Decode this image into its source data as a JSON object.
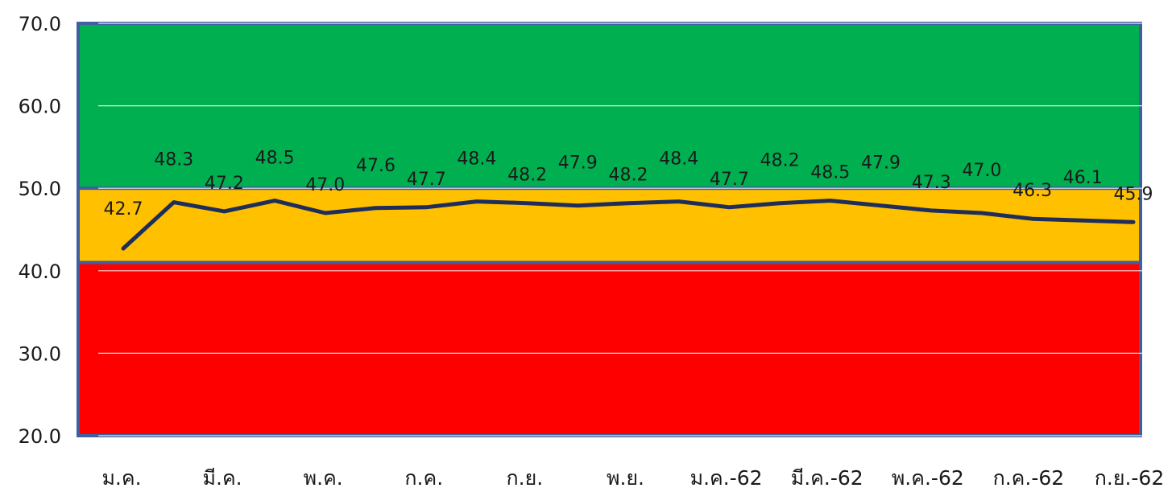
{
  "chart_data": {
    "type": "line",
    "title": "",
    "xlabel": "",
    "ylabel": "",
    "ylim": [
      20,
      70
    ],
    "y_ticks": [
      "70.0",
      "60.0",
      "50.0",
      "40.0",
      "30.0",
      "20.0"
    ],
    "x_tick_labels": [
      "ม.ค.",
      "มี.ค.",
      "พ.ค.",
      "ก.ค.",
      "ก.ย.",
      "พ.ย.",
      "ม.ค.-62",
      "มี.ค.-62",
      "พ.ค.-62",
      "ก.ค.-62",
      "ก.ย.-62"
    ],
    "grid": true,
    "legend": "none",
    "bands": [
      {
        "from": 50,
        "to": 70,
        "color": "#00b050"
      },
      {
        "from": 41,
        "to": 50,
        "color": "#ffc000"
      },
      {
        "from": 20,
        "to": 41,
        "color": "#ff0000"
      }
    ],
    "band_border_color": "#3f5f9f",
    "line_color": "#1f2d5a",
    "series": [
      {
        "values": [
          42.7,
          48.3,
          47.2,
          48.5,
          47.0,
          47.6,
          47.7,
          48.4,
          48.2,
          47.9,
          48.2,
          48.4,
          47.7,
          48.2,
          48.5,
          47.9,
          47.3,
          47.0,
          46.3,
          46.1,
          45.9
        ],
        "labels": [
          "42.7",
          "48.3",
          "47.2",
          "48.5",
          "47.0",
          "47.6",
          "47.7",
          "48.4",
          "48.2",
          "47.9",
          "48.2",
          "48.4",
          "47.7",
          "48.2",
          "48.5",
          "47.9",
          "47.3",
          "47.0",
          "46.3",
          "46.1",
          "45.9"
        ]
      }
    ]
  }
}
